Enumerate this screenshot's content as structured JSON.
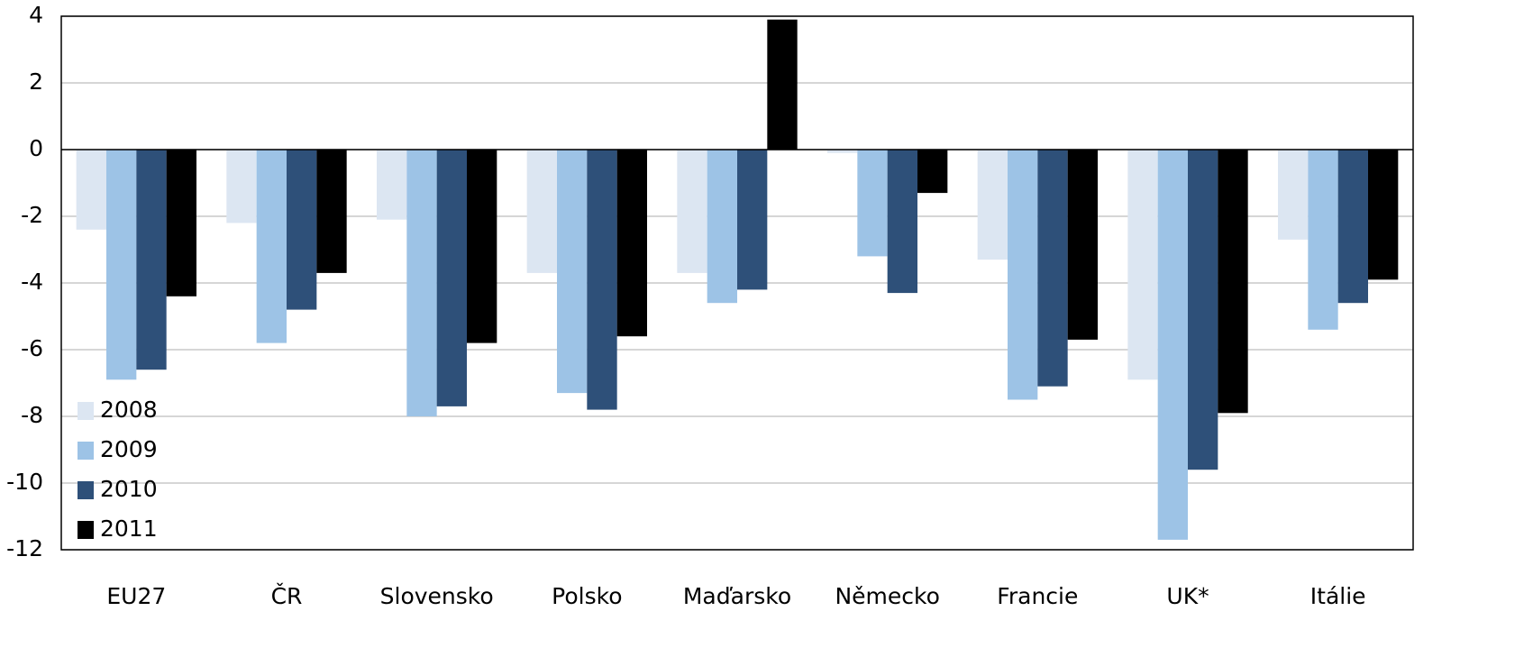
{
  "chart_data": {
    "type": "bar",
    "categories": [
      "EU27",
      "ČR",
      "Slovensko",
      "Polsko",
      "Maďarsko",
      "Německo",
      "Francie",
      "UK*",
      "Itálie"
    ],
    "series": [
      {
        "name": "2008",
        "color": "#dce6f2",
        "values": [
          -2.4,
          -2.2,
          -2.1,
          -3.7,
          -3.7,
          -0.1,
          -3.3,
          -6.9,
          -2.7
        ]
      },
      {
        "name": "2009",
        "color": "#9dc3e6",
        "values": [
          -6.9,
          -5.8,
          -8.0,
          -7.3,
          -4.6,
          -3.2,
          -7.5,
          -11.7,
          -5.4
        ]
      },
      {
        "name": "2010",
        "color": "#2e5079",
        "values": [
          -6.6,
          -4.8,
          -7.7,
          -7.8,
          -4.2,
          -4.3,
          -7.1,
          -9.6,
          -4.6
        ]
      },
      {
        "name": "2011",
        "color": "#000000",
        "values": [
          -4.4,
          -3.7,
          -5.8,
          -5.6,
          3.9,
          -1.3,
          -5.7,
          -7.9,
          -3.9
        ]
      }
    ],
    "ylim": [
      -12,
      4
    ],
    "yticks": [
      -12,
      -10,
      -8,
      -6,
      -4,
      -2,
      0,
      2,
      4
    ],
    "grid": true,
    "legend": "lower left"
  }
}
